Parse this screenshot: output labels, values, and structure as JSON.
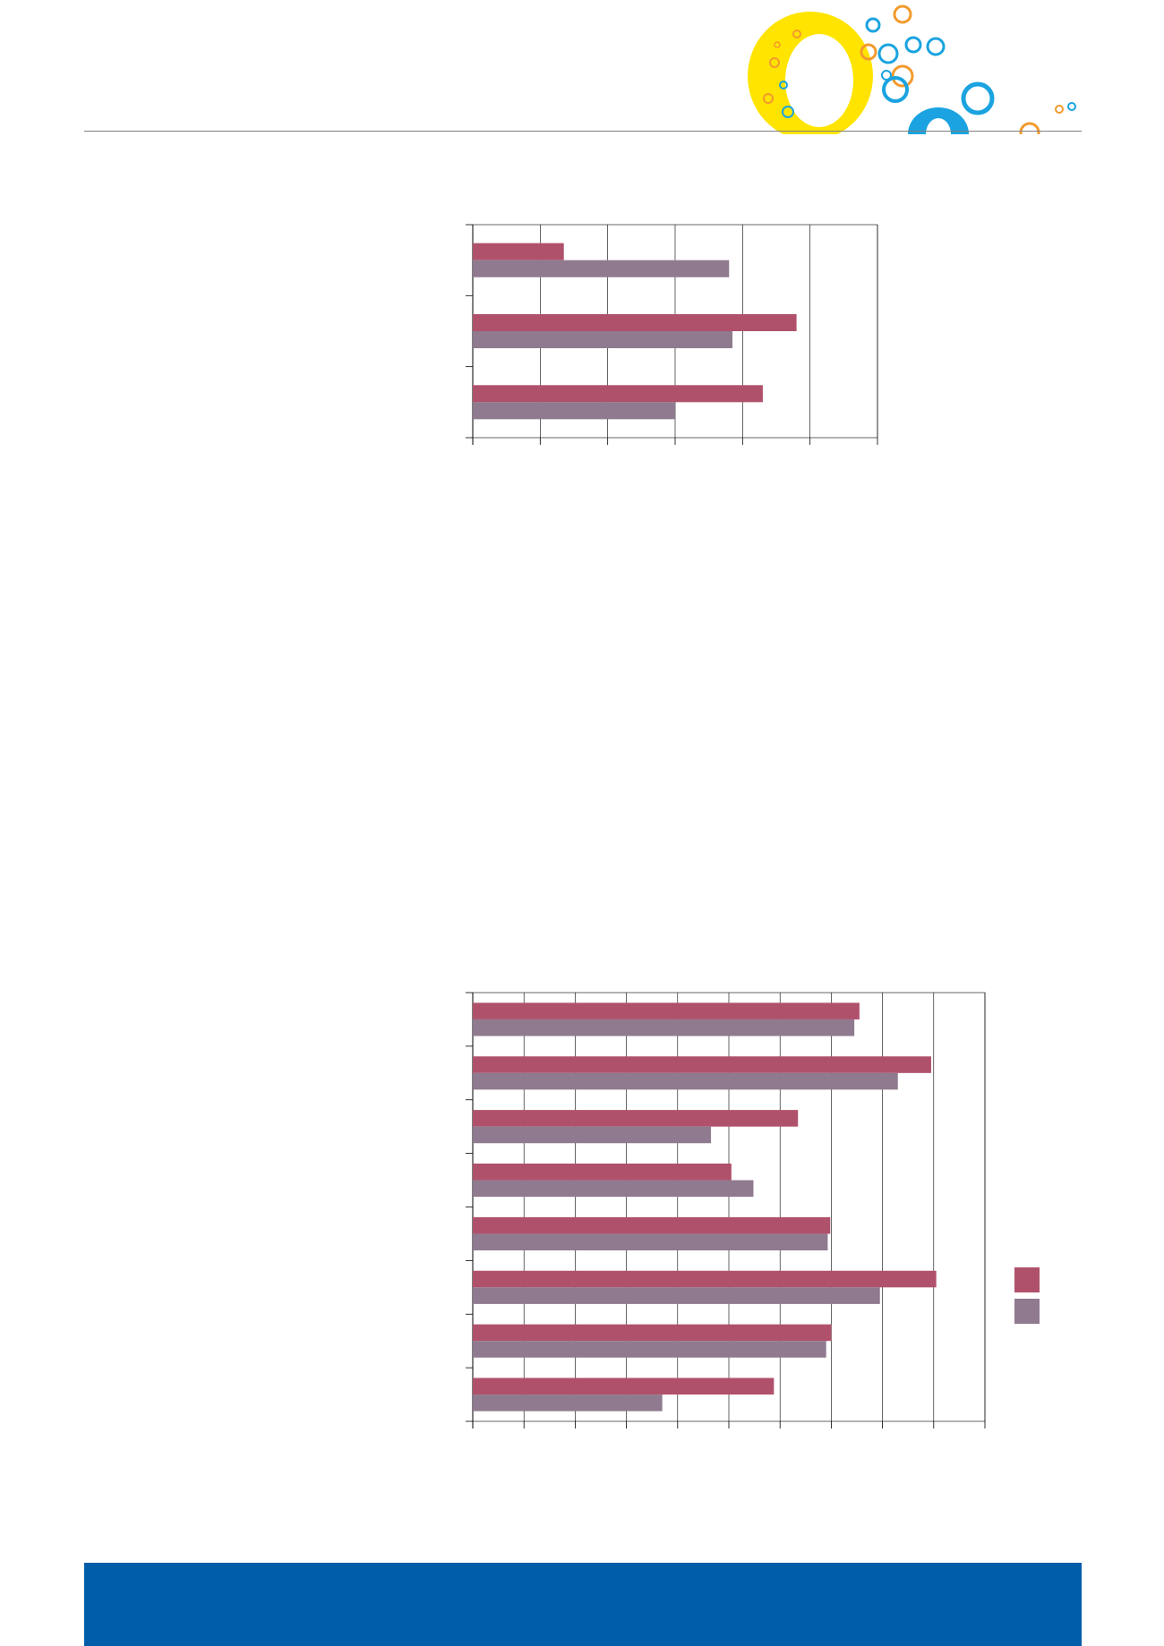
{
  "colors": {
    "series_a": "#b0516b",
    "series_b": "#8f7a8f",
    "footer": "#005daa",
    "rule": "#7f7f7f",
    "logo_yellow": "#ffe400",
    "logo_blue": "#1aa3e0",
    "logo_orange": "#f39a2c"
  },
  "logo": {
    "icon": "bubbles-logo-icon"
  },
  "chart_data": [
    {
      "type": "bar",
      "orientation": "horizontal",
      "categories": [
        "",
        "",
        ""
      ],
      "series": [
        {
          "values": [
            27,
            96,
            86
          ]
        },
        {
          "values": [
            76,
            77,
            60
          ]
        }
      ],
      "xlim": [
        0,
        120
      ],
      "x_gridline_step": 20,
      "grid": true,
      "legend_position": "right"
    },
    {
      "type": "bar",
      "orientation": "horizontal",
      "categories": [
        "",
        "",
        "",
        "",
        "",
        "",
        "",
        ""
      ],
      "series": [
        {
          "values": [
            75.5,
            89.5,
            63.5,
            50.5,
            69.8,
            90.5,
            70,
            58.8
          ]
        },
        {
          "values": [
            74.5,
            83,
            46.5,
            54.8,
            69.3,
            79.5,
            69,
            37
          ]
        }
      ],
      "xlim": [
        0,
        100
      ],
      "x_gridline_step": 10,
      "grid": true,
      "legend_position": "right"
    }
  ]
}
